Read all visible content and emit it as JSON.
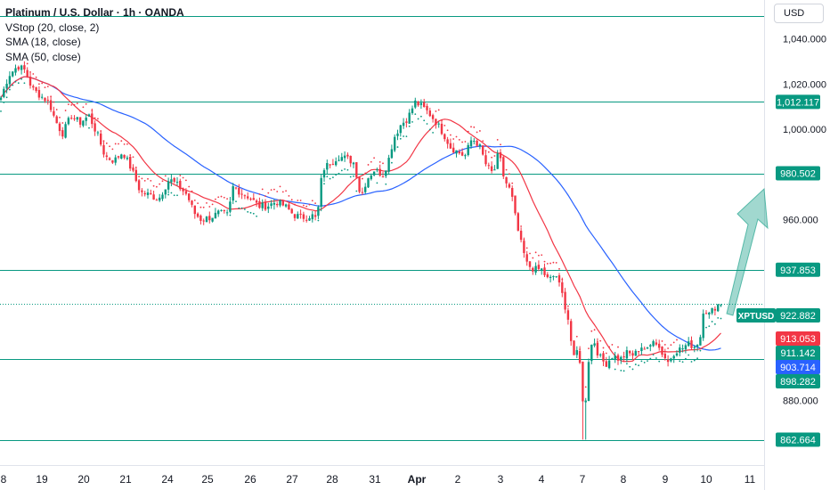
{
  "legend": {
    "title": "Platinum / U.S. Dollar · 1h · OANDA",
    "line1": "VStop (20, close, 2)",
    "line2": "SMA (18, close)",
    "line3": "SMA (50, close)"
  },
  "currency_label": "USD",
  "chart_data": {
    "type": "candlestick",
    "symbol": "XPTUSD",
    "xlabel": "",
    "ylabel": "",
    "ylim": [
      855,
      1053
    ],
    "y_ticks": [
      "1,040.000",
      "1,020.000",
      "1,000.000",
      "960.000",
      "880.000"
    ],
    "x_ticks": [
      "8",
      "19",
      "20",
      "21",
      "24",
      "25",
      "26",
      "27",
      "28",
      "31",
      "Apr",
      "2",
      "3",
      "4",
      "7",
      "8",
      "9",
      "10",
      "11"
    ],
    "horizontal_levels": [
      {
        "value": 1050.2
      },
      {
        "value": 1012.117,
        "label": "1,012.117"
      },
      {
        "value": 980.502,
        "label": "980.502"
      },
      {
        "value": 937.853,
        "label": "937.853"
      },
      {
        "value": 898.282,
        "label": "898.282"
      },
      {
        "value": 862.664,
        "label": "862.664"
      }
    ],
    "price_badges": [
      {
        "label": "XPTUSD",
        "value": "922.882",
        "color": "#089981"
      },
      {
        "value": "913.053",
        "color": "#f23645"
      },
      {
        "value": "911.142",
        "color": "#089981"
      },
      {
        "value": "903.714",
        "color": "#2962ff"
      },
      {
        "value": "898.282",
        "color": "#089981"
      }
    ],
    "current_price": 922.882,
    "price_path": [
      [
        1,
        1014
      ],
      [
        10,
        1024
      ],
      [
        20,
        1028
      ],
      [
        28,
        1026
      ],
      [
        36,
        1018
      ],
      [
        45,
        1015
      ],
      [
        55,
        1012
      ],
      [
        62,
        1004
      ],
      [
        70,
        998
      ],
      [
        80,
        1006
      ],
      [
        90,
        1003
      ],
      [
        100,
        1006
      ],
      [
        110,
        997
      ],
      [
        118,
        988
      ],
      [
        128,
        986
      ],
      [
        138,
        990
      ],
      [
        148,
        982
      ],
      [
        158,
        972
      ],
      [
        168,
        971
      ],
      [
        178,
        969
      ],
      [
        190,
        978
      ],
      [
        200,
        975
      ],
      [
        210,
        971
      ],
      [
        218,
        963
      ],
      [
        226,
        960
      ],
      [
        236,
        961
      ],
      [
        246,
        963
      ],
      [
        256,
        962
      ],
      [
        262,
        975
      ],
      [
        270,
        972
      ],
      [
        280,
        970
      ],
      [
        290,
        966
      ],
      [
        300,
        966
      ],
      [
        310,
        968
      ],
      [
        320,
        966
      ],
      [
        330,
        962
      ],
      [
        340,
        961
      ],
      [
        350,
        962
      ],
      [
        356,
        960
      ],
      [
        362,
        982
      ],
      [
        370,
        985
      ],
      [
        380,
        988
      ],
      [
        390,
        987
      ],
      [
        398,
        985
      ],
      [
        405,
        970
      ],
      [
        412,
        978
      ],
      [
        420,
        982
      ],
      [
        430,
        980
      ],
      [
        436,
        986
      ],
      [
        442,
        996
      ],
      [
        450,
        1002
      ],
      [
        458,
        1005
      ],
      [
        466,
        1012
      ],
      [
        474,
        1010
      ],
      [
        482,
        1007
      ],
      [
        490,
        1003
      ],
      [
        498,
        998
      ],
      [
        506,
        992
      ],
      [
        514,
        990
      ],
      [
        522,
        988
      ],
      [
        530,
        996
      ],
      [
        538,
        993
      ],
      [
        546,
        984
      ],
      [
        554,
        980
      ],
      [
        560,
        990
      ],
      [
        566,
        978
      ],
      [
        574,
        972
      ],
      [
        580,
        958
      ],
      [
        586,
        948
      ],
      [
        592,
        940
      ],
      [
        600,
        938
      ],
      [
        608,
        938
      ],
      [
        616,
        933
      ],
      [
        624,
        936
      ],
      [
        632,
        926
      ],
      [
        638,
        916
      ],
      [
        644,
        898
      ],
      [
        650,
        904
      ],
      [
        656,
        870
      ],
      [
        660,
        896
      ],
      [
        666,
        908
      ],
      [
        672,
        900
      ],
      [
        680,
        896
      ],
      [
        688,
        900
      ],
      [
        696,
        898
      ],
      [
        704,
        901
      ],
      [
        712,
        900
      ],
      [
        720,
        904
      ],
      [
        728,
        902
      ],
      [
        734,
        908
      ],
      [
        742,
        902
      ],
      [
        750,
        897
      ],
      [
        758,
        902
      ],
      [
        766,
        903
      ],
      [
        772,
        905
      ],
      [
        780,
        904
      ],
      [
        786,
        907
      ],
      [
        790,
        921
      ],
      [
        796,
        918
      ],
      [
        802,
        921
      ],
      [
        808,
        923
      ],
      [
        812,
        923
      ]
    ]
  }
}
